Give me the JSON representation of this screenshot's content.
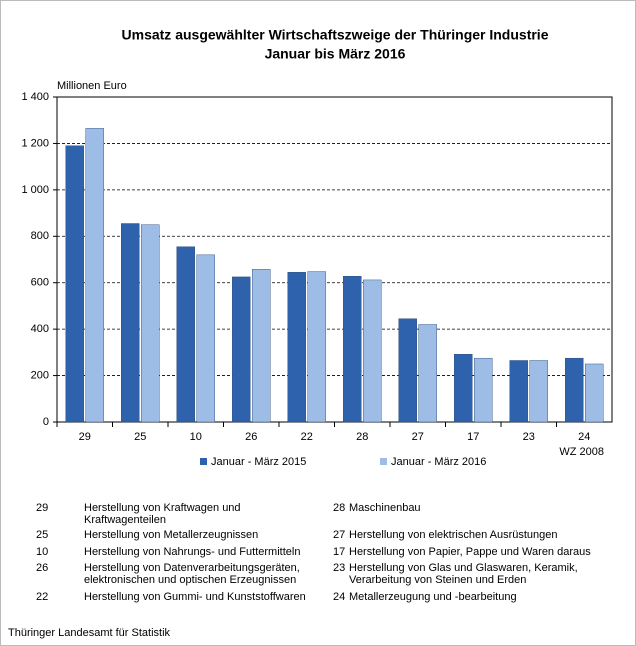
{
  "chart_data": {
    "type": "bar",
    "title": "Umsatz ausgewählter Wirtschaftszweige der Thüringer Industrie",
    "subtitle": "Januar bis März 2016",
    "y_label": "Millionen Euro",
    "x_label": "WZ 2008",
    "categories": [
      "29",
      "25",
      "10",
      "26",
      "22",
      "28",
      "27",
      "17",
      "23",
      "24"
    ],
    "series": [
      {
        "name": "Januar - März 2015",
        "color": "#2f62ad",
        "values": [
          1190,
          855,
          755,
          625,
          645,
          628,
          445,
          292,
          265,
          275
        ]
      },
      {
        "name": "Januar - März 2016",
        "color": "#9dbde6",
        "values": [
          1265,
          850,
          720,
          658,
          648,
          612,
          420,
          275,
          265,
          250
        ]
      }
    ],
    "ylim": [
      0,
      1400
    ],
    "yticks": [
      0,
      200,
      400,
      600,
      800,
      {
        "value": 1000,
        "label": "1 000"
      },
      {
        "value": 1200,
        "label": "1 200"
      },
      {
        "value": 1400,
        "label": "1 400"
      }
    ],
    "grid": true
  },
  "notes": [
    {
      "code": "29",
      "lines": [
        "Herstellung von Kraftwagen und",
        "Kraftwagenteilen"
      ]
    },
    {
      "code": "25",
      "lines": [
        "Herstellung von Metallerzeugnissen"
      ]
    },
    {
      "code": "10",
      "lines": [
        "Herstellung von Nahrungs- und Futtermitteln"
      ]
    },
    {
      "code": "26",
      "lines": [
        "Herstellung von Datenverarbeitungsgeräten,",
        "elektronischen und optischen Erzeugnissen"
      ]
    },
    {
      "code": "22",
      "lines": [
        "Herstellung von Gummi- und  Kunststoffwaren"
      ]
    },
    {
      "code": "28",
      "lines": [
        "Maschinenbau"
      ]
    },
    {
      "code": "27",
      "lines": [
        "Herstellung von elektrischen Ausrüstungen"
      ]
    },
    {
      "code": "17",
      "lines": [
        "Herstellung von Papier, Pappe und Waren daraus"
      ]
    },
    {
      "code": "23",
      "lines": [
        "Herstellung von Glas und Glaswaren, Keramik,",
        "Verarbeitung von Steinen und Erden"
      ]
    },
    {
      "code": "24",
      "lines": [
        "Metallerzeugung und -bearbeitung"
      ]
    }
  ],
  "footer": "Thüringer Landesamt für Statistik"
}
